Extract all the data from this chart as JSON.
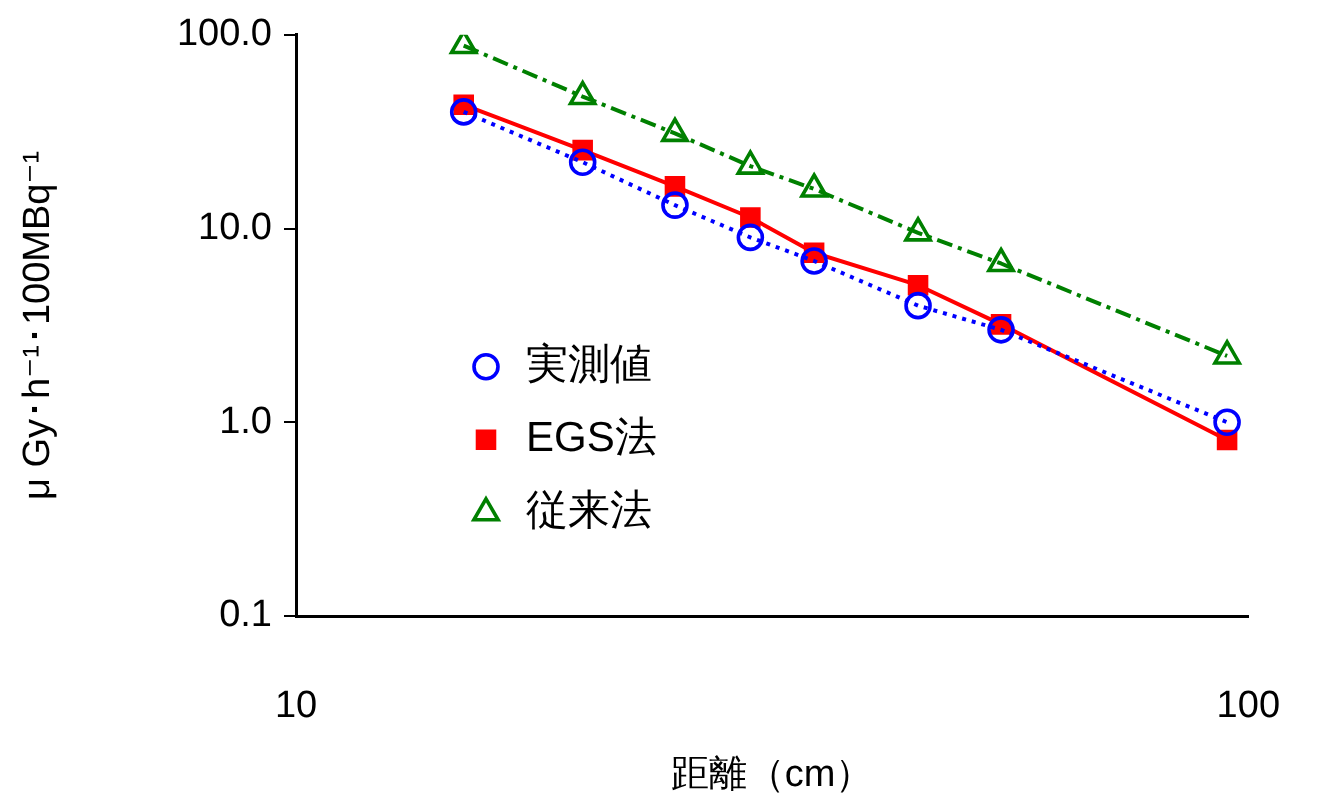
{
  "chart_data": {
    "type": "line",
    "xlabel": "距離（cm）",
    "ylabel": "μ Gy･h⁻¹･100MBq⁻¹",
    "log": "xy",
    "grid": false,
    "legend": "left",
    "xlim": [
      10,
      100
    ],
    "xticks": [
      10,
      100
    ],
    "ylim": [
      0.1,
      100
    ],
    "yticks": [
      {
        "value": 0.1,
        "label": "0.1"
      },
      {
        "value": 1,
        "label": "1.0"
      },
      {
        "value": 10,
        "label": "10.0"
      },
      {
        "value": 100,
        "label": "100.0"
      }
    ],
    "x": [
      15,
      20,
      25,
      30,
      35,
      45,
      55,
      95
    ],
    "series": [
      {
        "name": "実測値",
        "color": "#0000ff",
        "marker": "circle",
        "line_style": "dotted",
        "values": [
          40,
          22,
          13.2,
          9.0,
          6.8,
          4.0,
          3.0,
          1.0
        ]
      },
      {
        "name": "EGS法",
        "color": "#ff0000",
        "marker": "square",
        "line_style": "solid",
        "values": [
          43.5,
          25.4,
          16.5,
          11.4,
          7.5,
          5.1,
          3.2,
          0.81
        ]
      },
      {
        "name": "従来法",
        "color": "#008000",
        "marker": "triangle",
        "line_style": "dashed",
        "values": [
          88,
          48,
          31,
          21,
          16,
          9.5,
          6.6,
          2.2
        ]
      }
    ]
  }
}
